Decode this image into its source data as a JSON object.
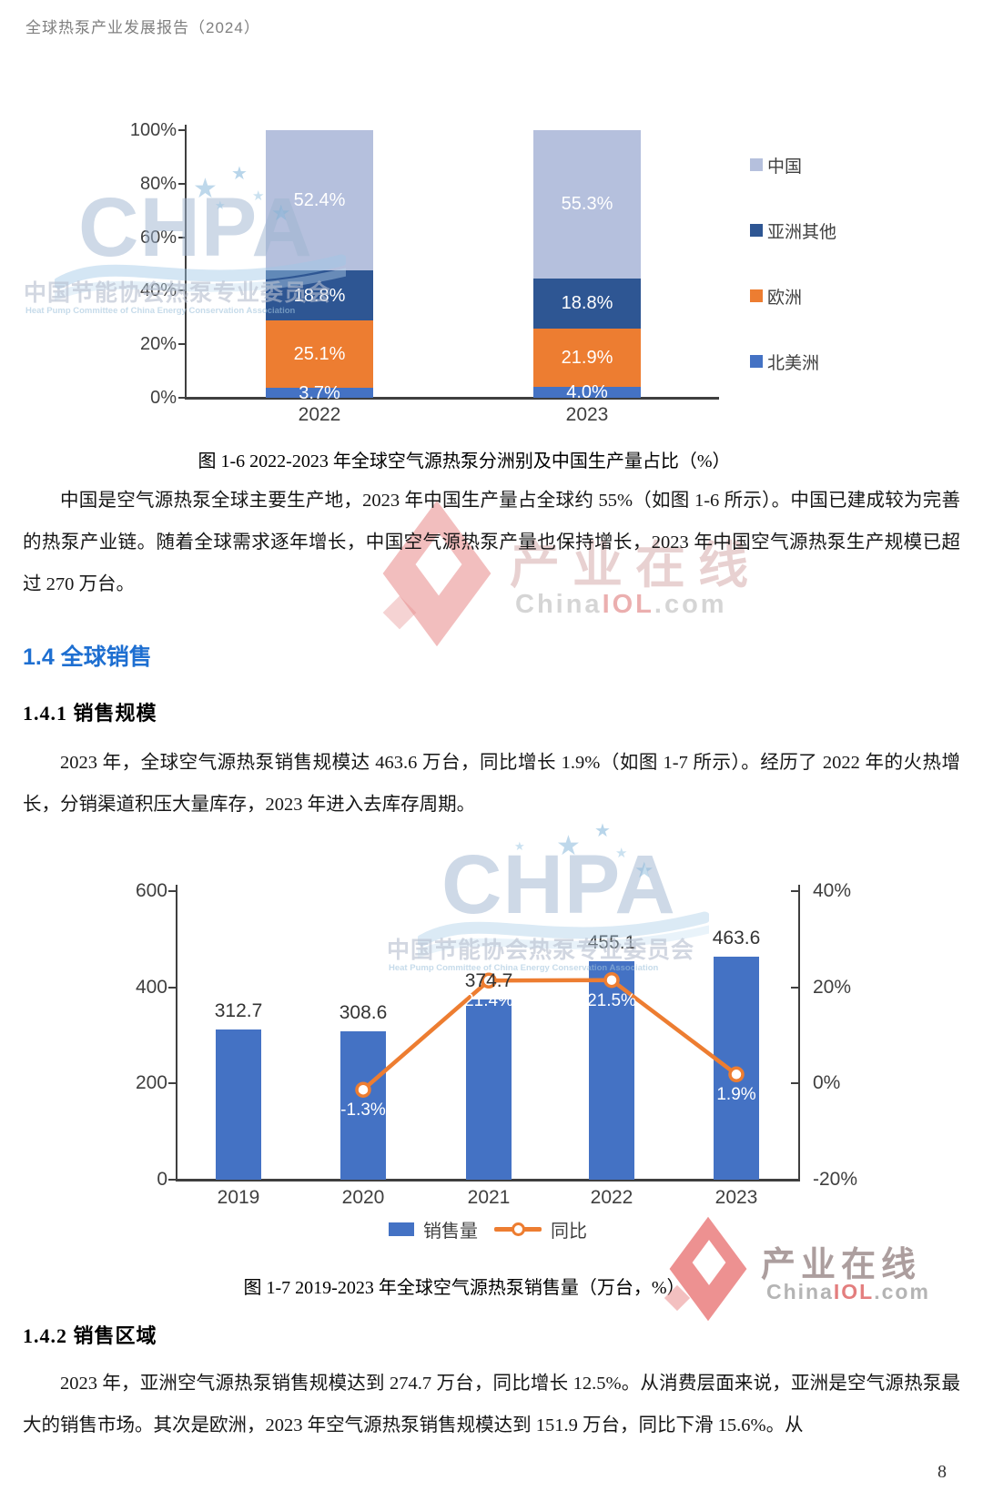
{
  "header": {
    "title": "全球热泵产业发展报告（2024）"
  },
  "page_number": "8",
  "headings": {
    "h2": "1.4 全球销售",
    "h3_1": "1.4.1 销售规模",
    "h3_2": "1.4.2 销售区域"
  },
  "paragraphs": {
    "p1": "中国是空气源热泵全球主要生产地，2023 年中国生产量占全球约 55%（如图 1-6 所示）。中国已建成较为完善的热泵产业链。随着全球需求逐年增长，中国空气源热泵产量也保持增长，2023 年中国空气源热泵生产规模已超过 270 万台。",
    "p2": "2023 年，全球空气源热泵销售规模达 463.6 万台，同比增长 1.9%（如图 1-7 所示）。经历了 2022 年的火热增长，分销渠道积压大量库存，2023 年进入去库存周期。",
    "p3": "2023 年，亚洲空气源热泵销售规模达到 274.7 万台，同比增长 12.5%。从消费层面来说，亚洲是空气源热泵最大的销售市场。其次是欧洲，2023 年空气源热泵销售规模达到 151.9 万台，同比下滑 15.6%。从"
  },
  "figures": {
    "fig6_caption": "图 1-6 2022-2023 年全球空气源热泵分洲别及中国生产量占比（%）",
    "fig7_caption": "图 1-7 2019-2023 年全球空气源热泵销售量（万台，%）"
  },
  "watermarks": {
    "chpa": {
      "acronym": "CHPA",
      "cn": "中国节能协会热泵专业委员会",
      "en": "Heat Pump Committee of China Energy Conservation Association"
    },
    "chinaiol": {
      "cn": "产业在线",
      "site_china": "China",
      "site_iol": "IOL",
      "site_com": ".com"
    }
  },
  "chart_data": [
    {
      "id": "fig-1-6",
      "type": "bar",
      "subtype": "stacked-100-percent",
      "title": "图 1-6 2022-2023 年全球空气源热泵分洲别及中国生产量占比（%）",
      "categories": [
        "2022",
        "2023"
      ],
      "series": [
        {
          "name": "北美洲",
          "color": "#4472C4",
          "values": [
            3.7,
            4.0
          ]
        },
        {
          "name": "欧洲",
          "color": "#ED7D31",
          "values": [
            25.1,
            21.9
          ]
        },
        {
          "name": "亚洲其他",
          "color": "#2E5693",
          "values": [
            18.8,
            18.8
          ]
        },
        {
          "name": "中国",
          "color": "#B5C0DD",
          "values": [
            52.4,
            55.3
          ]
        }
      ],
      "legend_order": [
        "中国",
        "亚洲其他",
        "欧洲",
        "北美洲"
      ],
      "y_ticks": [
        "100%",
        "80%",
        "60%",
        "40%",
        "20%",
        "0%"
      ],
      "ylim": [
        0,
        100
      ],
      "grid": false,
      "legend_position": "right"
    },
    {
      "id": "fig-1-7",
      "type": "bar",
      "subtype": "bar-with-line",
      "title": "图 1-7 2019-2023 年全球空气源热泵销售量（万台，%）",
      "categories": [
        "2019",
        "2020",
        "2021",
        "2022",
        "2023"
      ],
      "series": [
        {
          "name": "销售量",
          "type": "bar",
          "axis": "left",
          "color": "#4472C4",
          "values": [
            312.7,
            308.6,
            374.7,
            455.1,
            463.6
          ]
        },
        {
          "name": "同比",
          "type": "line",
          "axis": "right",
          "color": "#ED7D31",
          "values": [
            null,
            -1.3,
            21.4,
            21.5,
            1.9
          ],
          "labels": [
            null,
            "-1.3%",
            "21.4%",
            "21.5%",
            "1.9%"
          ]
        }
      ],
      "left_axis": {
        "ticks": [
          "600",
          "400",
          "200",
          "0"
        ],
        "min": 0,
        "max": 600
      },
      "right_axis": {
        "ticks": [
          "40%",
          "20%",
          "0%",
          "-20%"
        ],
        "min": -20,
        "max": 40
      },
      "legend": [
        "销售量",
        "同比"
      ],
      "grid": false,
      "legend_position": "bottom"
    }
  ]
}
